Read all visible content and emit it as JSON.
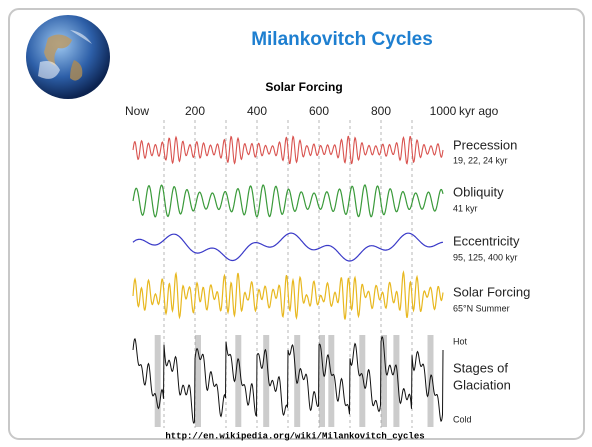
{
  "slide": {
    "title": "Milankovitch Cycles",
    "figure": {
      "title": "Solar Forcing",
      "x_labels": [
        "Now",
        "200",
        "400",
        "600",
        "800",
        "1000"
      ],
      "x_unit": "kyr ago",
      "rows": [
        {
          "label": "Precession",
          "sublabel": "19, 22, 24 kyr"
        },
        {
          "label": "Obliquity",
          "sublabel": "41 kyr"
        },
        {
          "label": "Eccentricity",
          "sublabel": "95, 125, 400 kyr"
        },
        {
          "label": "Solar Forcing",
          "sublabel": "65°N Summer"
        }
      ],
      "glaciation": {
        "top": "Hot",
        "label_lines": [
          "Stages of",
          "Glaciation"
        ],
        "bottom": "Cold"
      }
    },
    "source": "http://en.wikipedia.org/wiki/Milankovitch_cycles"
  }
}
